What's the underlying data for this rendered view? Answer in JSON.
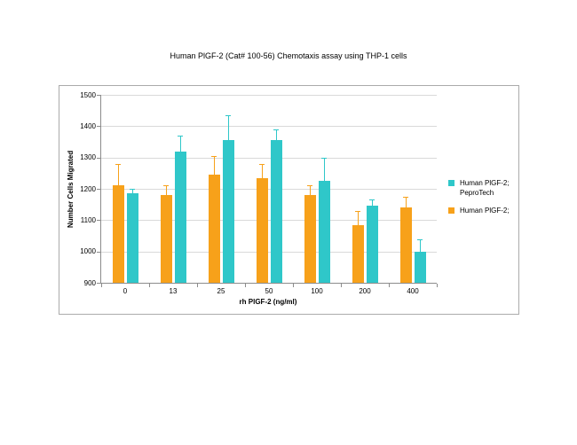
{
  "chart_data": {
    "type": "bar",
    "title": "Human PlGF-2 (Cat# 100-56) Chemotaxis assay using THP-1 cells",
    "xlabel": "rh PlGF-2 (ng/ml)",
    "ylabel": "Number Cells Migrated",
    "categories": [
      "0",
      "13",
      "25",
      "50",
      "100",
      "200",
      "400"
    ],
    "series": [
      {
        "name": "Human PlGF-2;",
        "color": "#f7a11a",
        "values": [
          1210,
          1180,
          1245,
          1235,
          1180,
          1085,
          1140
        ],
        "errors_upper": [
          70,
          30,
          60,
          45,
          30,
          45,
          35
        ]
      },
      {
        "name": "Human PlGF-2; PeproTech",
        "color": "#2fc7c9",
        "values": [
          1185,
          1320,
          1355,
          1355,
          1225,
          1145,
          1000
        ],
        "errors_upper": [
          15,
          50,
          80,
          35,
          75,
          20,
          40
        ]
      }
    ],
    "ylim": [
      900,
      1500
    ],
    "ytick_step": 100,
    "grid": true,
    "legend_position": "right",
    "legend": [
      {
        "label": "Human PlGF-2;\nPeproTech",
        "color": "#2fc7c9"
      },
      {
        "label": "Human PlGF-2;",
        "color": "#f7a11a"
      }
    ],
    "colors": {
      "gridline": "#d9d9d9",
      "axis": "#8c8c8c",
      "frame_border": "#ababab"
    }
  }
}
